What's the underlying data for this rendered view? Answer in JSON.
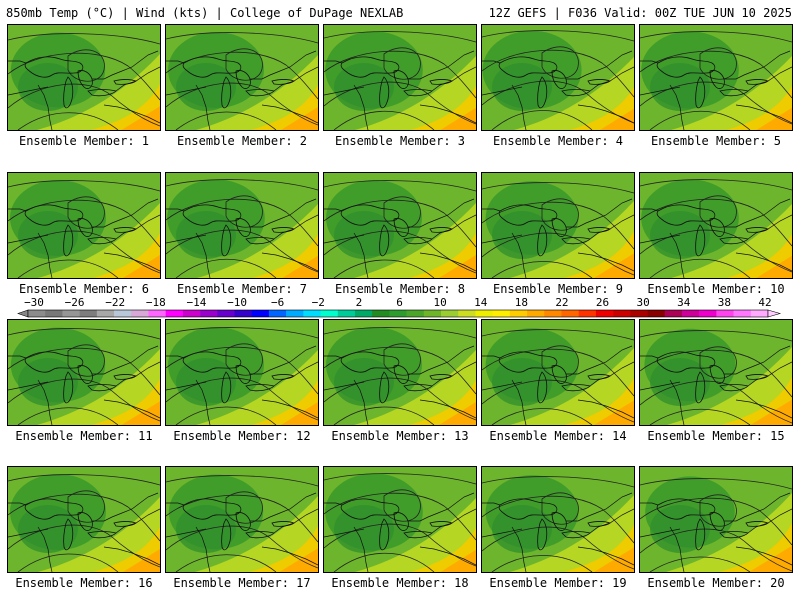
{
  "header": {
    "left": "850mb Temp (°C) | Wind (kts) | College of DuPage NEXLAB",
    "right": "12Z GEFS | F036 Valid: 00Z TUE JUN 10 2025"
  },
  "panels": [
    {
      "label": "Ensemble Member: 1",
      "warmth": 0.55
    },
    {
      "label": "Ensemble Member: 2",
      "warmth": 0.5
    },
    {
      "label": "Ensemble Member: 3",
      "warmth": 0.45
    },
    {
      "label": "Ensemble Member: 4",
      "warmth": 0.4
    },
    {
      "label": "Ensemble Member: 5",
      "warmth": 0.45
    },
    {
      "label": "Ensemble Member: 6",
      "warmth": 0.5
    },
    {
      "label": "Ensemble Member: 7",
      "warmth": 0.45
    },
    {
      "label": "Ensemble Member: 8",
      "warmth": 0.5
    },
    {
      "label": "Ensemble Member: 9",
      "warmth": 0.6
    },
    {
      "label": "Ensemble Member: 10",
      "warmth": 0.45
    },
    {
      "label": "Ensemble Member: 11",
      "warmth": 0.55
    },
    {
      "label": "Ensemble Member: 12",
      "warmth": 0.5
    },
    {
      "label": "Ensemble Member: 13",
      "warmth": 0.5
    },
    {
      "label": "Ensemble Member: 14",
      "warmth": 0.6
    },
    {
      "label": "Ensemble Member: 15",
      "warmth": 0.65
    },
    {
      "label": "Ensemble Member: 16",
      "warmth": 0.5
    },
    {
      "label": "Ensemble Member: 17",
      "warmth": 0.55
    },
    {
      "label": "Ensemble Member: 18",
      "warmth": 0.45
    },
    {
      "label": "Ensemble Member: 19",
      "warmth": 0.6
    },
    {
      "label": "Ensemble Member: 20",
      "warmth": 0.7
    }
  ],
  "colorbar": {
    "labels": [
      "-30",
      "-26",
      "-22",
      "-18",
      "-14",
      "-10",
      "-6",
      "-2",
      "2",
      "6",
      "10",
      "14",
      "18",
      "22",
      "26",
      "30",
      "34",
      "38",
      "42"
    ],
    "colors": [
      "#8c8c8c",
      "#787878",
      "#969696",
      "#7d7d7d",
      "#a8a8a8",
      "#b8c8d8",
      "#d8a8d8",
      "#ff66ff",
      "#ff00ff",
      "#cc00cc",
      "#9900cc",
      "#6600cc",
      "#3300cc",
      "#0000ff",
      "#0066ff",
      "#00aaff",
      "#00ddff",
      "#00ffcc",
      "#00cc99",
      "#00aa66",
      "#228b22",
      "#2e9b2e",
      "#4aa52a",
      "#6fb52a",
      "#9acd32",
      "#ccdd22",
      "#eeee00",
      "#ffee00",
      "#ffcc00",
      "#ffaa00",
      "#ff8800",
      "#ff6600",
      "#ff3300",
      "#ee0000",
      "#cc0000",
      "#aa0000",
      "#880000",
      "#aa0055",
      "#cc0099",
      "#ee00cc",
      "#ff44ee",
      "#ff77ff",
      "#ffaaff"
    ]
  }
}
